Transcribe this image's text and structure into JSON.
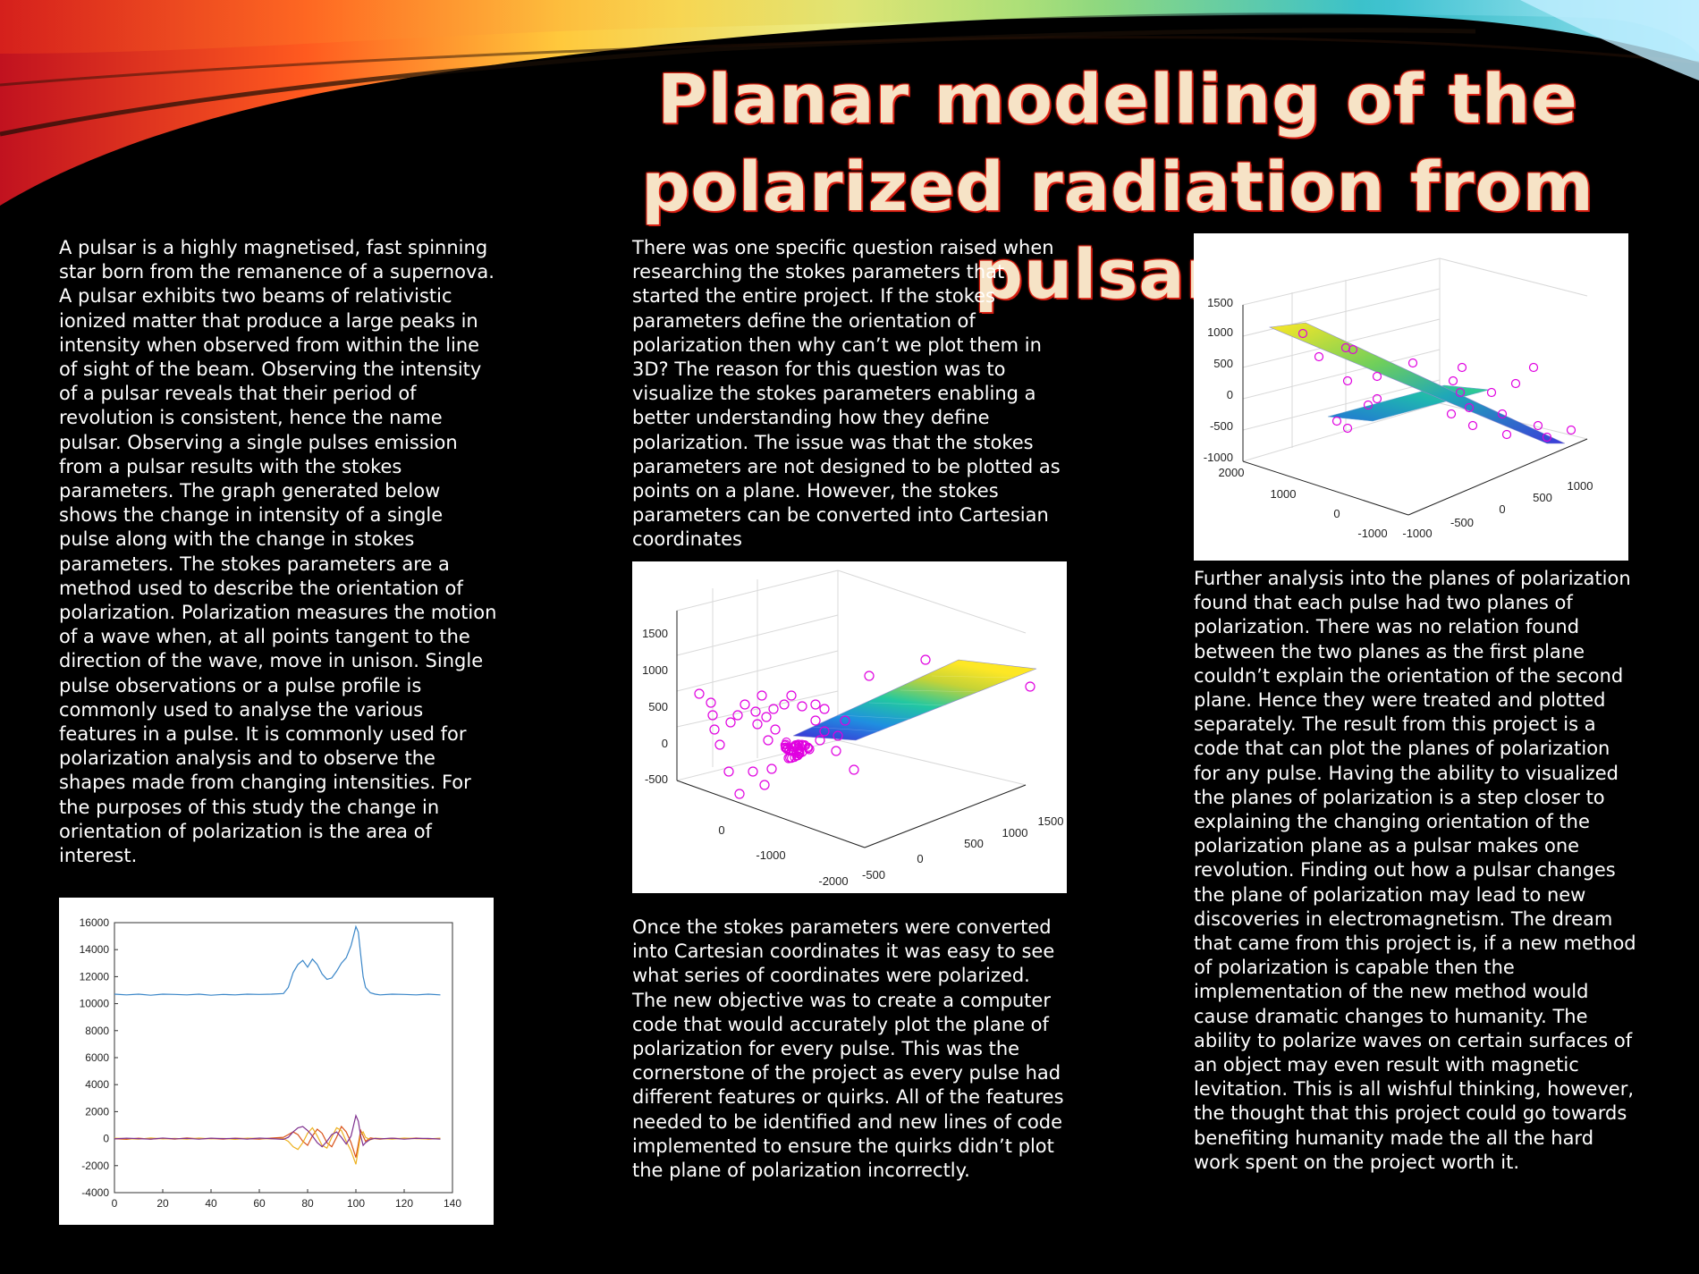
{
  "title": "Planar modelling of the polarized radiation from pulsars",
  "columns": {
    "left_text": "A pulsar is a highly magnetised, fast spinning star born from the remanence of a supernova. A pulsar exhibits two beams of relativistic ionized matter that produce a large peaks in intensity when observed from within the line of sight of the beam. Observing the intensity of a pulsar reveals that their period of revolution is consistent, hence the name pulsar. Observing a single pulses emission from a pulsar results with the stokes parameters. The graph generated below shows the change in intensity of a single pulse along with the change in stokes parameters. The stokes parameters are a method used to describe the orientation of polarization. Polarization measures the motion of a wave when, at all points tangent to the direction of the wave, move in unison. Single pulse observations or a pulse profile is commonly used to analyse the various features in a pulse. It is commonly used for polarization analysis and to observe the shapes made from changing intensities. For the purposes of this study the change in orientation of polarization is the area of interest.",
    "middle_text_top": "There was one specific question raised when researching the stokes parameters that started the entire project. If the stokes parameters define the orientation of polarization then why can’t we plot them in 3D?  The reason for this question was to visualize the stokes parameters enabling a better understanding how they define polarization. The issue was that the stokes parameters are not designed to be plotted as points on a plane. However, the stokes parameters can be converted into Cartesian coordinates",
    "middle_text_bottom": "Once the stokes parameters were converted into Cartesian coordinates it was easy to see what series of coordinates were polarized. The new objective was to create a computer code that would accurately plot the plane of polarization for every pulse. This was the cornerstone of the project as every pulse had different features or quirks. All of the features needed to be identified and new lines of code implemented to ensure the quirks didn’t plot the plane of polarization incorrectly.",
    "right_text": "Further analysis into the planes of polarization found that each pulse had two planes of polarization. There was no relation found between the two planes as the first plane couldn’t explain the orientation of the second plane. Hence they were treated and plotted separately. The result from this project is a code that can plot the planes of polarization for any pulse. Having the ability to visualized the planes of polarization is a step closer to explaining the changing orientation of the polarization plane as a pulsar makes one revolution. Finding out how a pulsar changes the plane of polarization may lead to new discoveries in electromagnetism. The dream that came from this project is, if a new method of polarization is capable then the implementation of the new method would cause dramatic changes to humanity. The ability to polarize waves on certain surfaces of an object may even result with magnetic levitation. This is all wishful thinking, however, the thought that this project could go towards benefiting humanity made the all the hard work spent on the project worth it."
  },
  "colors": {
    "intensity_line": "#3a86c8",
    "stokes_q": "#d95319",
    "stokes_u": "#edb120",
    "stokes_v": "#7e2f8e",
    "marker": "#e000e0",
    "text": "#ffffff",
    "background": "#000000"
  },
  "chart_data": [
    {
      "type": "line",
      "x": [
        0,
        5,
        10,
        15,
        20,
        25,
        30,
        35,
        40,
        45,
        50,
        55,
        60,
        65,
        70,
        72,
        74,
        76,
        78,
        80,
        82,
        84,
        86,
        88,
        90,
        92,
        94,
        96,
        98,
        100,
        101,
        102,
        103,
        104,
        106,
        108,
        110,
        115,
        120,
        125,
        130,
        135
      ],
      "series": [
        {
          "values": [
            10700,
            10650,
            10700,
            10620,
            10700,
            10680,
            10650,
            10700,
            10620,
            10680,
            10650,
            10700,
            10680,
            10700,
            10750,
            11200,
            12300,
            12900,
            13200,
            12700,
            13300,
            12900,
            12200,
            11800,
            11900,
            12400,
            13000,
            13400,
            14300,
            15700,
            15300,
            13600,
            12000,
            11200,
            10800,
            10700,
            10650,
            10700,
            10680,
            10650,
            10700,
            10650
          ]
        },
        {
          "values": [
            0,
            -50,
            30,
            -40,
            20,
            -30,
            50,
            -20,
            10,
            -40,
            30,
            0,
            -30,
            40,
            100,
            300,
            500,
            300,
            -200,
            -500,
            200,
            700,
            400,
            -300,
            -600,
            100,
            900,
            500,
            -300,
            -1400,
            -400,
            600,
            200,
            -200,
            50,
            0,
            -40,
            30,
            -20,
            40,
            -30,
            10
          ]
        },
        {
          "values": [
            30,
            0,
            -40,
            50,
            -20,
            10,
            -30,
            40,
            -10,
            20,
            -50,
            30,
            10,
            -20,
            0,
            -200,
            -600,
            -800,
            -300,
            400,
            800,
            200,
            -500,
            -700,
            100,
            800,
            600,
            -200,
            -900,
            -1900,
            -800,
            300,
            500,
            100,
            -80,
            30,
            20,
            -30,
            40,
            0,
            -20,
            30
          ]
        },
        {
          "values": [
            -20,
            30,
            0,
            -30,
            40,
            -10,
            20,
            -40,
            30,
            0,
            20,
            -30,
            40,
            0,
            -50,
            100,
            500,
            800,
            900,
            600,
            200,
            -300,
            -600,
            -200,
            300,
            500,
            100,
            -400,
            200,
            1700,
            1300,
            200,
            -500,
            -300,
            -50,
            20,
            -10,
            30,
            -40,
            20,
            10,
            -30
          ]
        }
      ],
      "ylim": [
        -4000,
        16000
      ],
      "xlim": [
        0,
        140
      ],
      "yticks": [
        "16000",
        "14000",
        "12000",
        "10000",
        "8000",
        "6000",
        "4000",
        "2000",
        "0",
        "-2000",
        "-4000"
      ],
      "xticks": [
        "0",
        "20",
        "40",
        "60",
        "80",
        "100",
        "120",
        "140"
      ]
    },
    {
      "type": "scatter",
      "surface": "plane",
      "z_ticks": [
        "1500",
        "1000",
        "500",
        "0",
        "-500"
      ],
      "x_ticks": [
        "0",
        "-1000",
        "-2000"
      ],
      "y_ticks": [
        "-500",
        "0",
        "500",
        "1000",
        "1500"
      ]
    },
    {
      "type": "scatter",
      "surface": "two planes",
      "z_ticks": [
        "1500",
        "1000",
        "500",
        "0",
        "-500",
        "-1000"
      ],
      "x_ticks": [
        "2000",
        "1000",
        "0",
        "-1000"
      ],
      "y_ticks": [
        "-1000",
        "-500",
        "0",
        "500",
        "1000"
      ]
    }
  ]
}
